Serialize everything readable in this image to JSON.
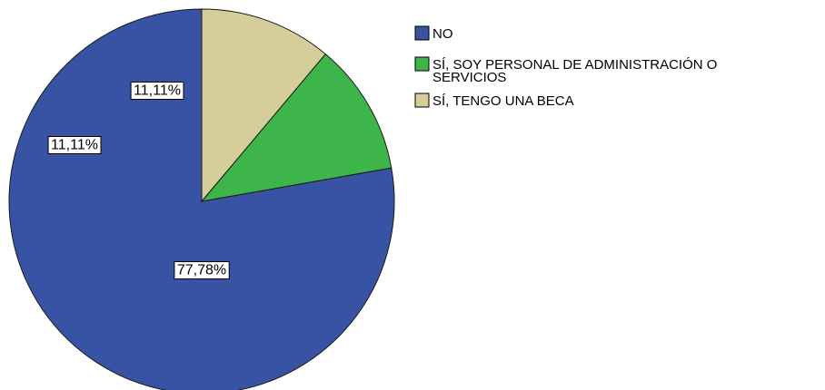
{
  "chart_data": {
    "type": "pie",
    "title": "",
    "slices": [
      {
        "name": "NO",
        "value": 77.78,
        "label": "77,78%",
        "color": "#3953A4"
      },
      {
        "name": "SÍ, SOY PERSONAL DE ADMINISTRACIÓN O SERVICIOS",
        "value": 11.11,
        "label": "11,11%",
        "color": "#3DB54A"
      },
      {
        "name": "SÍ, TENGO UNA BECA",
        "value": 11.11,
        "label": "11,11%",
        "color": "#D6CE9A"
      }
    ],
    "legend": {
      "placement": "top-right",
      "items": [
        {
          "lines": [
            "NO"
          ],
          "color": "#3953A4"
        },
        {
          "lines": [
            "SÍ, SOY PERSONAL DE ADMINISTRACIÓN O",
            "SERVICIOS"
          ],
          "color": "#3DB54A"
        },
        {
          "lines": [
            "SÍ, TENGO UNA BECA"
          ],
          "color": "#D6CE9A"
        }
      ]
    },
    "start_angle_deg": 0,
    "direction": "counterclockwise"
  }
}
